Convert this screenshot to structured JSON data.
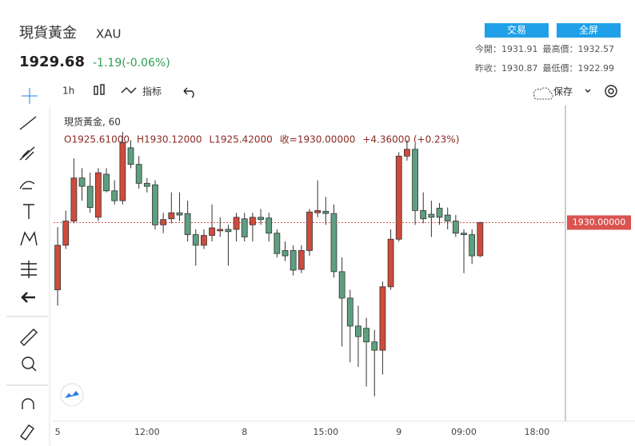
{
  "header": {
    "title": "現貨黃金",
    "symbol": "XAU",
    "price": "1929.68",
    "change": "-1.19(-0.06%)",
    "buttons": [
      "交易",
      "全屏"
    ],
    "stats": [
      [
        {
          "label": "今開：",
          "value": "1931.91"
        },
        {
          "label": "最高價：",
          "value": "1932.57"
        }
      ],
      [
        {
          "label": "昨收：",
          "value": "1930.87"
        },
        {
          "label": "最低價：",
          "value": "1922.99"
        }
      ]
    ]
  },
  "toolbar": {
    "interval": "1h",
    "indicators": "指标",
    "save": "保存"
  },
  "chart_data": {
    "type": "candlestick",
    "legend_title": "現货黃金, 60",
    "ohlc_legend": [
      "O1925.61000",
      "H1930.12000",
      "L1925.42000",
      "收=1930.00000",
      "+4.36000 (+0.23%)"
    ],
    "categories": [
      "5",
      null,
      null,
      null,
      null,
      null,
      null,
      null,
      null,
      null,
      null,
      "12:00",
      null,
      null,
      null,
      null,
      null,
      null,
      null,
      null,
      null,
      null,
      null,
      "8",
      null,
      null,
      null,
      null,
      null,
      null,
      null,
      null,
      null,
      "15:00",
      null,
      null,
      null,
      null,
      null,
      null,
      null,
      null,
      "9",
      null,
      null,
      null,
      null,
      null,
      null,
      null,
      "09:00",
      null,
      null,
      null,
      null,
      null,
      null,
      null,
      null,
      "18:00",
      null,
      null,
      null
    ],
    "open": [
      1921.1,
      1927.0,
      1930.2,
      1935.9,
      1934.8,
      1930.7,
      1936.4,
      1934.2,
      1932.9,
      1939.9,
      1937.7,
      1935.2,
      1935.0,
      1929.7,
      1930.5,
      1931.3,
      1931.2,
      1928.4,
      1927.0,
      1928.3,
      1928.9,
      1929.1,
      1929.1,
      1930.5,
      1929.7,
      1930.7,
      1930.6,
      1928.6,
      1926.3,
      1926.3,
      1923.8,
      1926.3,
      1931.3,
      1931.5,
      1931.2,
      1923.5,
      1920.0,
      1916.3,
      1916.0,
      1914.2,
      1913.1,
      1921.5,
      1927.8,
      1938.8,
      1939.7,
      1931.6,
      1931.1,
      1931.9,
      1931.0,
      1930.2,
      1928.6,
      1928.4,
      1925.61,
      null,
      null,
      null,
      null,
      null,
      null,
      null,
      null,
      null,
      null
    ],
    "high": [
      1929.4,
      1931.6,
      1938.5,
      1937.2,
      1936.6,
      1937.2,
      1937.2,
      1935.6,
      1942.0,
      1940.9,
      1938.8,
      1935.9,
      1935.6,
      1931.3,
      1934.0,
      1934.0,
      1932.9,
      1929.1,
      1929.1,
      1932.4,
      1930.7,
      1929.7,
      1931.3,
      1931.3,
      1931.3,
      1931.8,
      1931.3,
      1929.1,
      1927.5,
      1927.0,
      1927.0,
      1931.8,
      1935.6,
      1933.4,
      1932.4,
      1925.4,
      1921.1,
      1919.0,
      1917.4,
      1915.8,
      1922.2,
      1929.1,
      1939.3,
      1940.9,
      1940.4,
      1934.0,
      1932.9,
      1932.6,
      1932.0,
      1931.0,
      1929.1,
      1929.1,
      1930.12,
      null,
      null,
      null,
      null,
      null,
      null,
      null,
      null,
      null,
      null
    ],
    "low": [
      1919.0,
      1926.5,
      1929.9,
      1932.9,
      1931.3,
      1930.2,
      1934.0,
      1932.4,
      1932.4,
      1937.2,
      1934.5,
      1934.0,
      1929.1,
      1928.6,
      1929.9,
      1930.2,
      1927.5,
      1924.3,
      1926.5,
      1927.5,
      1928.1,
      1924.3,
      1927.5,
      1927.5,
      1927.5,
      1929.7,
      1927.5,
      1925.4,
      1924.9,
      1923.0,
      1923.3,
      1925.6,
      1930.7,
      1929.7,
      1922.7,
      1913.6,
      1911.5,
      1910.9,
      1908.3,
      1907.0,
      1909.9,
      1921.1,
      1927.5,
      1938.2,
      1929.7,
      1929.9,
      1928.1,
      1929.7,
      1929.1,
      1928.1,
      1923.3,
      1924.5,
      1925.42,
      null,
      null,
      null,
      null,
      null,
      null,
      null,
      null,
      null,
      null
    ],
    "close": [
      1927.0,
      1930.2,
      1935.9,
      1934.8,
      1932.0,
      1936.6,
      1934.2,
      1932.9,
      1940.6,
      1937.7,
      1935.2,
      1934.8,
      1929.7,
      1930.4,
      1931.3,
      1931.0,
      1928.4,
      1927.0,
      1928.3,
      1929.3,
      1929.1,
      1928.8,
      1930.7,
      1928.1,
      1930.7,
      1930.4,
      1928.6,
      1925.9,
      1925.6,
      1923.7,
      1926.3,
      1931.4,
      1931.6,
      1931.2,
      1923.5,
      1920.0,
      1916.3,
      1914.9,
      1914.2,
      1913.1,
      1921.5,
      1927.8,
      1938.8,
      1939.7,
      1931.6,
      1930.5,
      1930.7,
      1930.7,
      1930.2,
      1928.6,
      1928.4,
      1925.6,
      1930.0,
      null,
      null,
      null,
      null,
      null,
      null,
      null,
      null,
      null,
      null
    ],
    "last_price": {
      "value": 1930.0,
      "label": "1930.00000"
    },
    "ylim": [
      1903.7,
      1945.5
    ],
    "up_color": "#cf4b3c",
    "down_color": "#5e9f80",
    "last_price_color": "#d9534f"
  }
}
